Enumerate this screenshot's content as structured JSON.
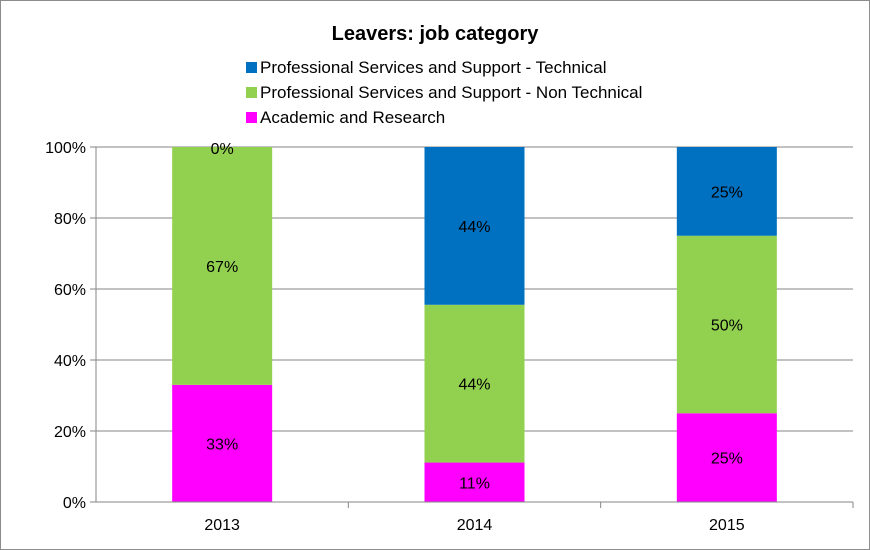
{
  "chart_data": {
    "type": "bar",
    "stacked": true,
    "title": "Leavers: job category",
    "categories": [
      "2013",
      "2014",
      "2015"
    ],
    "series": [
      {
        "name": "Academic and Research",
        "values": [
          33,
          11,
          25
        ],
        "labels": [
          "33%",
          "11%",
          "25%"
        ],
        "color": "#ff00ff"
      },
      {
        "name": "Professional Services and Support - Non Technical",
        "values": [
          67,
          44,
          50
        ],
        "labels": [
          "67%",
          "44%",
          "50%"
        ],
        "color": "#92d050"
      },
      {
        "name": "Professional Services and Support - Technical",
        "values": [
          0,
          44,
          25
        ],
        "labels": [
          "0%",
          "44%",
          "25%"
        ],
        "color": "#0070c0"
      }
    ],
    "legend_order": [
      2,
      1,
      0
    ],
    "ylim": [
      0,
      100
    ],
    "yticks": [
      "0%",
      "20%",
      "40%",
      "60%",
      "80%",
      "100%"
    ],
    "grid": true,
    "legend_position": "top"
  }
}
